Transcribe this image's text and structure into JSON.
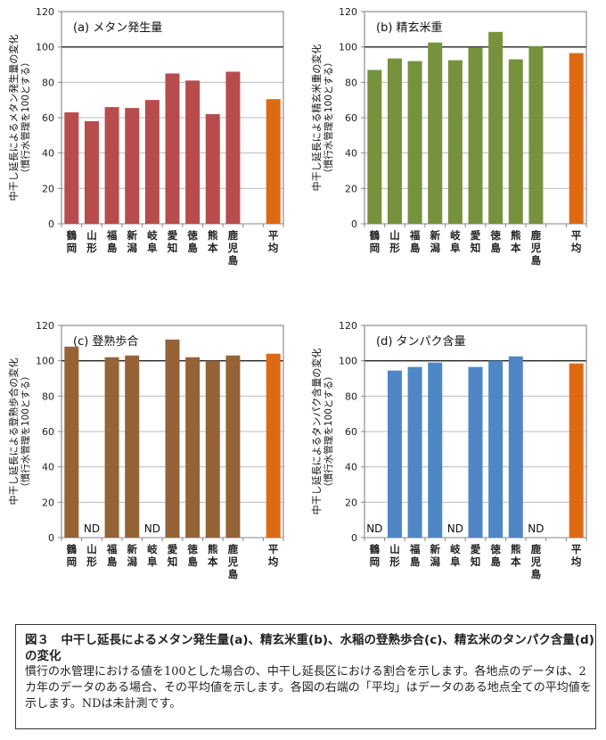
{
  "chart_data": [
    {
      "type": "bar",
      "title": "(a) メタン発生量",
      "ylabel": [
        "中干し延長によるメタン発生量の変化",
        "（慣行水管理を100とする）"
      ],
      "categories": [
        "鶴岡",
        "山形",
        "福島",
        "新潟",
        "岐阜",
        "愛知",
        "徳島",
        "熊本",
        "鹿児島",
        "平均"
      ],
      "values": [
        63,
        58,
        66,
        65.5,
        70,
        85,
        81,
        62,
        86,
        70.5
      ],
      "ylim": [
        0,
        120
      ],
      "yticks": [
        0,
        20,
        40,
        60,
        80,
        100,
        120
      ],
      "reference_line": 100,
      "bar_color": "#b84c4c",
      "average_color": "#dd6a13",
      "missing_label": "ND"
    },
    {
      "type": "bar",
      "title": "(b) 精玄米重",
      "ylabel": [
        "中干し延長による精玄米重の変化",
        "（慣行水管理を100とする）"
      ],
      "categories": [
        "鶴岡",
        "山形",
        "福島",
        "新潟",
        "岐阜",
        "愛知",
        "徳島",
        "熊本",
        "鹿児島",
        "平均"
      ],
      "values": [
        87,
        93.5,
        92,
        102.5,
        92.5,
        99.5,
        108.5,
        93,
        100.5,
        96.5
      ],
      "ylim": [
        0,
        120
      ],
      "yticks": [
        0,
        20,
        40,
        60,
        80,
        100,
        120
      ],
      "reference_line": 100,
      "bar_color": "#76923c",
      "average_color": "#dd6a13",
      "missing_label": "ND"
    },
    {
      "type": "bar",
      "title": "(c) 登熟歩合",
      "ylabel": [
        "中干し延長による登熟歩合の変化",
        "（慣行水管理を100とする）"
      ],
      "categories": [
        "鶴岡",
        "山形",
        "福島",
        "新潟",
        "岐阜",
        "愛知",
        "徳島",
        "熊本",
        "鹿児島",
        "平均"
      ],
      "values": [
        108,
        null,
        102,
        103,
        null,
        112,
        102,
        100,
        103,
        104
      ],
      "ylim": [
        0,
        120
      ],
      "yticks": [
        0,
        20,
        40,
        60,
        80,
        100,
        120
      ],
      "reference_line": 100,
      "bar_color": "#956336",
      "average_color": "#dd6a13",
      "missing_label": "ND"
    },
    {
      "type": "bar",
      "title": "(d) タンパク含量",
      "ylabel": [
        "中干し延長によるタンパク含量の変化",
        "（慣行水管理を100とする）"
      ],
      "categories": [
        "鶴岡",
        "山形",
        "福島",
        "新潟",
        "岐阜",
        "愛知",
        "徳島",
        "熊本",
        "鹿児島",
        "平均"
      ],
      "values": [
        null,
        94.5,
        96.5,
        99,
        null,
        96.5,
        100,
        102.5,
        null,
        98.5
      ],
      "ylim": [
        0,
        120
      ],
      "yticks": [
        0,
        20,
        40,
        60,
        80,
        100,
        120
      ],
      "reference_line": 100,
      "bar_color": "#4f86c6",
      "average_color": "#dd6a13",
      "missing_label": "ND"
    }
  ],
  "caption": {
    "title": "図３　中干し延長によるメタン発生量(a)、精玄米重(b)、水稲の登熟歩合(c)、精玄米のタンパク含量(d)の変化",
    "body": "慣行の水管理における値を100とした場合の、中干し延長区における割合を示します。各地点のデータは、2カ年のデータのある場合、その平均値を示します。各図の右端の「平均」はデータのある地点全ての平均値を示します。NDは未計測です。"
  }
}
